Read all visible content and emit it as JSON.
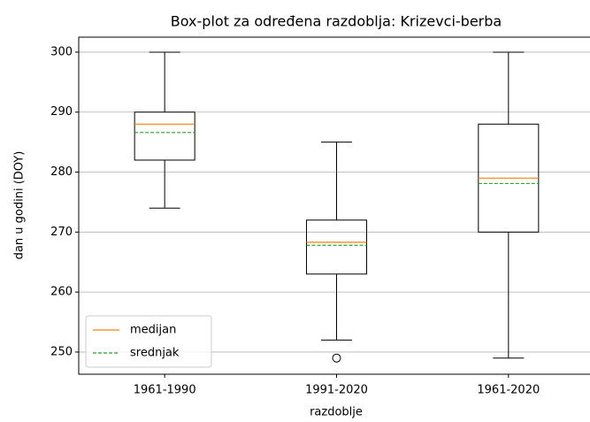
{
  "chart_data": {
    "type": "box",
    "title": "Box-plot za određena razdoblja: Krizevci-berba",
    "xlabel": "razdoblje",
    "ylabel": "dan u godini (DOY)",
    "categories": [
      "1961-1990",
      "1991-2020",
      "1961-2020"
    ],
    "boxes": [
      {
        "whislo": 274,
        "q1": 282,
        "median": 288,
        "mean": 286.6,
        "q3": 290,
        "whishi": 300,
        "fliers": []
      },
      {
        "whislo": 252,
        "q1": 263,
        "median": 268.3,
        "mean": 267.8,
        "q3": 272,
        "whishi": 285,
        "fliers": [
          249
        ]
      },
      {
        "whislo": 249,
        "q1": 270,
        "median": 279,
        "mean": 278.1,
        "q3": 288,
        "whishi": 300,
        "fliers": []
      }
    ],
    "legend": [
      {
        "label": "medijan",
        "color": "#ff7f0e",
        "dash": false
      },
      {
        "label": "srednjak",
        "color": "#2ca02c",
        "dash": true
      }
    ],
    "legend_loc": "lower left",
    "ylim": [
      246.3,
      302.5
    ],
    "yticks": [
      250,
      260,
      270,
      280,
      290,
      300
    ],
    "grid": "y"
  }
}
